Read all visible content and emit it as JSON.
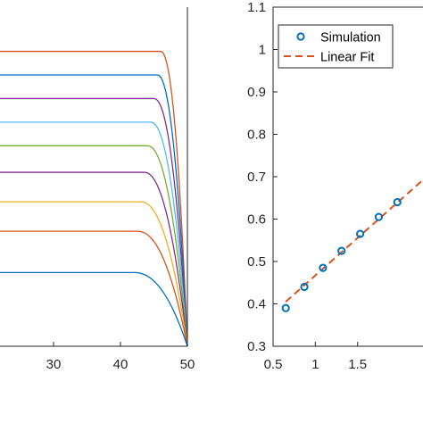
{
  "chart_data": [
    {
      "type": "line",
      "title": "",
      "xlabel": "",
      "ylabel": "",
      "xlim": [
        22,
        50
      ],
      "ylim": [
        0,
        1.15
      ],
      "xticks": [
        30,
        40,
        50
      ],
      "xtick_labels": [
        "30",
        "40",
        "50"
      ],
      "grid": false,
      "legend": "none",
      "x_end": 50,
      "series": [
        {
          "level": 1.0,
          "knee": 46.0,
          "color": "#d95319"
        },
        {
          "level": 0.92,
          "knee": 45.5,
          "color": "#0072bd"
        },
        {
          "level": 0.84,
          "knee": 45.0,
          "color": "#7e2f8e"
        },
        {
          "level": 0.76,
          "knee": 44.5,
          "color": "#4dbeee"
        },
        {
          "level": 0.68,
          "knee": 44.0,
          "color": "#77ac30"
        },
        {
          "level": 0.59,
          "knee": 43.5,
          "color": "#7e2f8e"
        },
        {
          "level": 0.49,
          "knee": 43.0,
          "color": "#edb120"
        },
        {
          "level": 0.39,
          "knee": 42.5,
          "color": "#d95319"
        },
        {
          "level": 0.25,
          "knee": 42.0,
          "color": "#0072bd"
        }
      ]
    },
    {
      "type": "scatter",
      "title": "",
      "xlabel": "",
      "ylabel": "",
      "xlim": [
        0.5,
        2.4
      ],
      "ylim": [
        0.3,
        1.1
      ],
      "xticks": [
        0.5,
        1,
        1.5
      ],
      "xtick_labels": [
        "0.5",
        "1",
        "1.5"
      ],
      "yticks": [
        0.3,
        0.4,
        0.5,
        0.6,
        0.7,
        0.8,
        0.9,
        1,
        1.1
      ],
      "ytick_labels": [
        "0.3",
        "0.4",
        "0.5",
        "0.6",
        "0.7",
        "0.8",
        "0.9",
        "1",
        "1.1"
      ],
      "grid": false,
      "legend": "top-left",
      "series": [
        {
          "name": "Simulation",
          "style": "markers",
          "color": "#0072bd",
          "x": [
            0.65,
            0.87,
            1.09,
            1.31,
            1.53,
            1.75,
            1.97
          ],
          "y": [
            0.39,
            0.44,
            0.485,
            0.525,
            0.565,
            0.605,
            0.64
          ]
        },
        {
          "name": "Linear Fit",
          "style": "dashed",
          "color": "#d95319",
          "x": [
            0.65,
            2.4
          ],
          "y": [
            0.405,
            0.715
          ]
        }
      ]
    }
  ]
}
